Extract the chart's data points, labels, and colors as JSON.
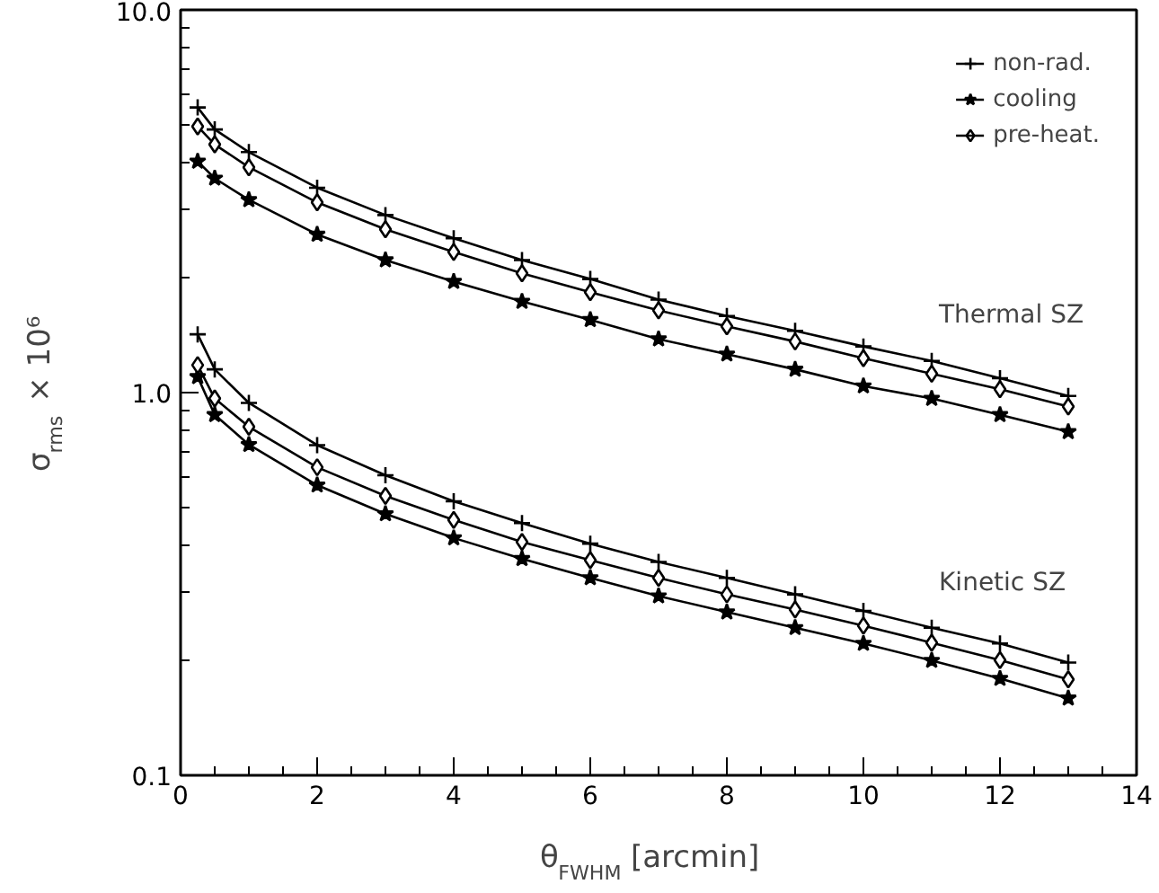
{
  "chart_data": {
    "type": "line",
    "xlabel": "θ$_{FWHM}$ [arcmin]",
    "ylabel": "σ$_{rms}$ × 10⁶",
    "x": [
      0.25,
      0.5,
      1,
      2,
      3,
      4,
      5,
      6,
      7,
      8,
      9,
      10,
      11,
      12,
      13
    ],
    "series": [
      {
        "name": "non-rad.",
        "color": "#000000",
        "marker": "cross",
        "values": [
          5.56,
          4.87,
          4.25,
          3.43,
          2.91,
          2.53,
          2.22,
          1.98,
          1.75,
          1.585,
          1.45,
          1.32,
          1.21,
          1.09,
          0.98
        ]
      },
      {
        "name": "cooling",
        "color": "#000000",
        "marker": "star",
        "values": [
          4.02,
          3.63,
          3.19,
          2.59,
          2.22,
          1.95,
          1.73,
          1.55,
          1.38,
          1.26,
          1.15,
          1.04,
          0.965,
          0.875,
          0.79
        ]
      },
      {
        "name": "pre-heat.",
        "color": "#000000",
        "marker": "diamond",
        "values": [
          4.96,
          4.45,
          3.88,
          3.14,
          2.67,
          2.33,
          2.05,
          1.83,
          1.64,
          1.49,
          1.36,
          1.23,
          1.12,
          1.02,
          0.92
        ]
      },
      {
        "color": "#000000",
        "marker": "cross",
        "values": [
          1.42,
          1.15,
          0.94,
          0.729,
          0.608,
          0.52,
          0.456,
          0.403,
          0.361,
          0.328,
          0.297,
          0.269,
          0.243,
          0.221,
          0.197
        ]
      },
      {
        "color": "#000000",
        "marker": "star",
        "values": [
          1.1,
          0.875,
          0.731,
          0.573,
          0.482,
          0.417,
          0.368,
          0.328,
          0.294,
          0.267,
          0.243,
          0.221,
          0.1995,
          0.179,
          0.159
        ]
      },
      {
        "color": "#000000",
        "marker": "diamond",
        "values": [
          1.18,
          0.965,
          0.814,
          0.638,
          0.537,
          0.465,
          0.407,
          0.365,
          0.328,
          0.297,
          0.271,
          0.246,
          0.222,
          0.2,
          0.178
        ]
      }
    ],
    "annotations": [
      "Thermal SZ",
      "Kinetic SZ"
    ],
    "log": "y",
    "xlim": [
      0,
      14
    ],
    "ylim": [
      0.1,
      10
    ],
    "xticks": [
      0,
      2,
      4,
      6,
      8,
      10,
      12,
      14
    ],
    "yticks": [
      {
        "value": 0.1,
        "label": "0.1"
      },
      {
        "value": 1,
        "label": "1.0"
      },
      {
        "value": 10,
        "label": "10.0"
      }
    ],
    "grid": false,
    "legend": "top right",
    "line_style": "solid"
  }
}
